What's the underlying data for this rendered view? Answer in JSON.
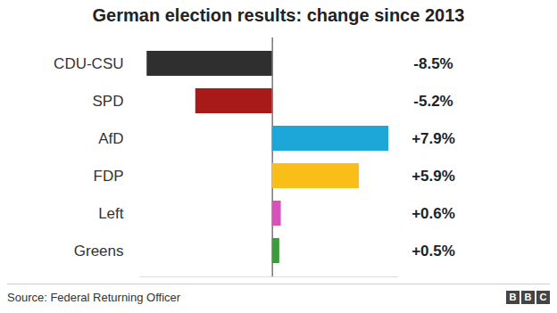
{
  "chart_data": {
    "type": "bar",
    "title": "German election results: change since 2013",
    "orientation": "horizontal",
    "categories": [
      "CDU-CSU",
      "SPD",
      "AfD",
      "FDP",
      "Left",
      "Greens"
    ],
    "values": [
      -8.5,
      -5.2,
      7.9,
      5.9,
      0.6,
      0.5
    ],
    "value_labels": [
      "-8.5%",
      "-5.2%",
      "+7.9%",
      "+5.9%",
      "+0.6%",
      "+0.5%"
    ],
    "colors": [
      "#2f2f2f",
      "#a81a1a",
      "#1da7d8",
      "#fbbd18",
      "#d651b8",
      "#3d9b3d"
    ],
    "xlim": [
      -9,
      8.5
    ],
    "xticks": [
      0
    ],
    "grid": true,
    "data_labels": true,
    "tick_labels": "y",
    "source": "Source: Federal Returning Officer",
    "logo": "BBC"
  }
}
